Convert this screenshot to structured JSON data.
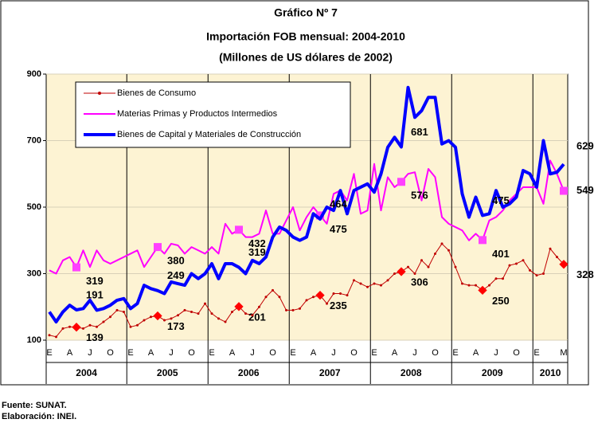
{
  "chart_data": {
    "type": "line",
    "title": "Gráfico Nº 7",
    "subtitle": [
      "Importación FOB mensual: 2004-2010",
      "(Millones de US dólares de 2002)"
    ],
    "categories": [
      "E",
      null,
      null,
      "A",
      null,
      null,
      "J",
      null,
      null,
      "O",
      null,
      null,
      "E",
      null,
      null,
      "A",
      null,
      null,
      "J",
      null,
      null,
      "O",
      null,
      null,
      "E",
      null,
      null,
      "A",
      null,
      null,
      "J",
      null,
      null,
      "O",
      null,
      null,
      "E",
      null,
      null,
      "A",
      null,
      null,
      "J",
      null,
      null,
      "O",
      null,
      null,
      "E",
      null,
      null,
      "A",
      null,
      null,
      "J",
      null,
      null,
      "O",
      null,
      null,
      "E",
      null,
      null,
      "A",
      null,
      null,
      "J",
      null,
      null,
      "O",
      null,
      null,
      "E",
      null,
      null,
      null,
      "M"
    ],
    "years": [
      "2004",
      "2005",
      "2006",
      "2007",
      "2008",
      "2009",
      "2010"
    ],
    "ylim": [
      100,
      900
    ],
    "yticks": [
      100,
      300,
      500,
      700,
      900
    ],
    "grid": true,
    "series": [
      {
        "name": "Bienes de Consumo",
        "color": "#c00000",
        "values": [
          115,
          110,
          135,
          140,
          139,
          135,
          145,
          140,
          155,
          170,
          190,
          185,
          140,
          145,
          160,
          170,
          173,
          160,
          165,
          175,
          190,
          185,
          180,
          210,
          180,
          165,
          155,
          185,
          201,
          180,
          175,
          200,
          230,
          250,
          230,
          190,
          190,
          195,
          220,
          230,
          235,
          210,
          240,
          240,
          235,
          280,
          270,
          260,
          270,
          265,
          280,
          300,
          306,
          320,
          300,
          340,
          320,
          360,
          390,
          370,
          320,
          270,
          265,
          265,
          250,
          265,
          285,
          285,
          325,
          330,
          340,
          310,
          295,
          300,
          375,
          350,
          328
        ]
      },
      {
        "name": "Materias Primas y Productos Intermedios",
        "color": "#ff00ff",
        "values": [
          310,
          300,
          340,
          350,
          319,
          370,
          320,
          370,
          340,
          330,
          340,
          350,
          360,
          370,
          320,
          350,
          380,
          360,
          390,
          385,
          360,
          380,
          370,
          360,
          380,
          360,
          450,
          420,
          432,
          410,
          410,
          420,
          490,
          420,
          420,
          460,
          500,
          430,
          470,
          500,
          475,
          450,
          540,
          550,
          520,
          600,
          480,
          490,
          630,
          490,
          590,
          560,
          576,
          600,
          605,
          520,
          615,
          590,
          470,
          450,
          440,
          430,
          400,
          420,
          401,
          460,
          470,
          490,
          520,
          540,
          560,
          560,
          560,
          510,
          640,
          600,
          549
        ]
      },
      {
        "name": "Bienes de Capital y Materiales de Construcción",
        "color": "#0000ff",
        "values": [
          185,
          155,
          185,
          205,
          191,
          195,
          220,
          190,
          195,
          205,
          220,
          225,
          195,
          210,
          265,
          255,
          249,
          240,
          275,
          270,
          265,
          300,
          285,
          300,
          330,
          285,
          330,
          330,
          319,
          300,
          340,
          330,
          350,
          410,
          440,
          430,
          410,
          400,
          410,
          480,
          464,
          500,
          490,
          550,
          480,
          550,
          560,
          570,
          545,
          600,
          680,
          710,
          681,
          860,
          770,
          790,
          830,
          830,
          690,
          700,
          680,
          540,
          470,
          530,
          475,
          480,
          550,
          500,
          510,
          530,
          610,
          600,
          560,
          700,
          600,
          605,
          629
        ]
      }
    ]
  },
  "source": [
    "Fuente: SUNAT.",
    "Elaboración: INEI."
  ]
}
